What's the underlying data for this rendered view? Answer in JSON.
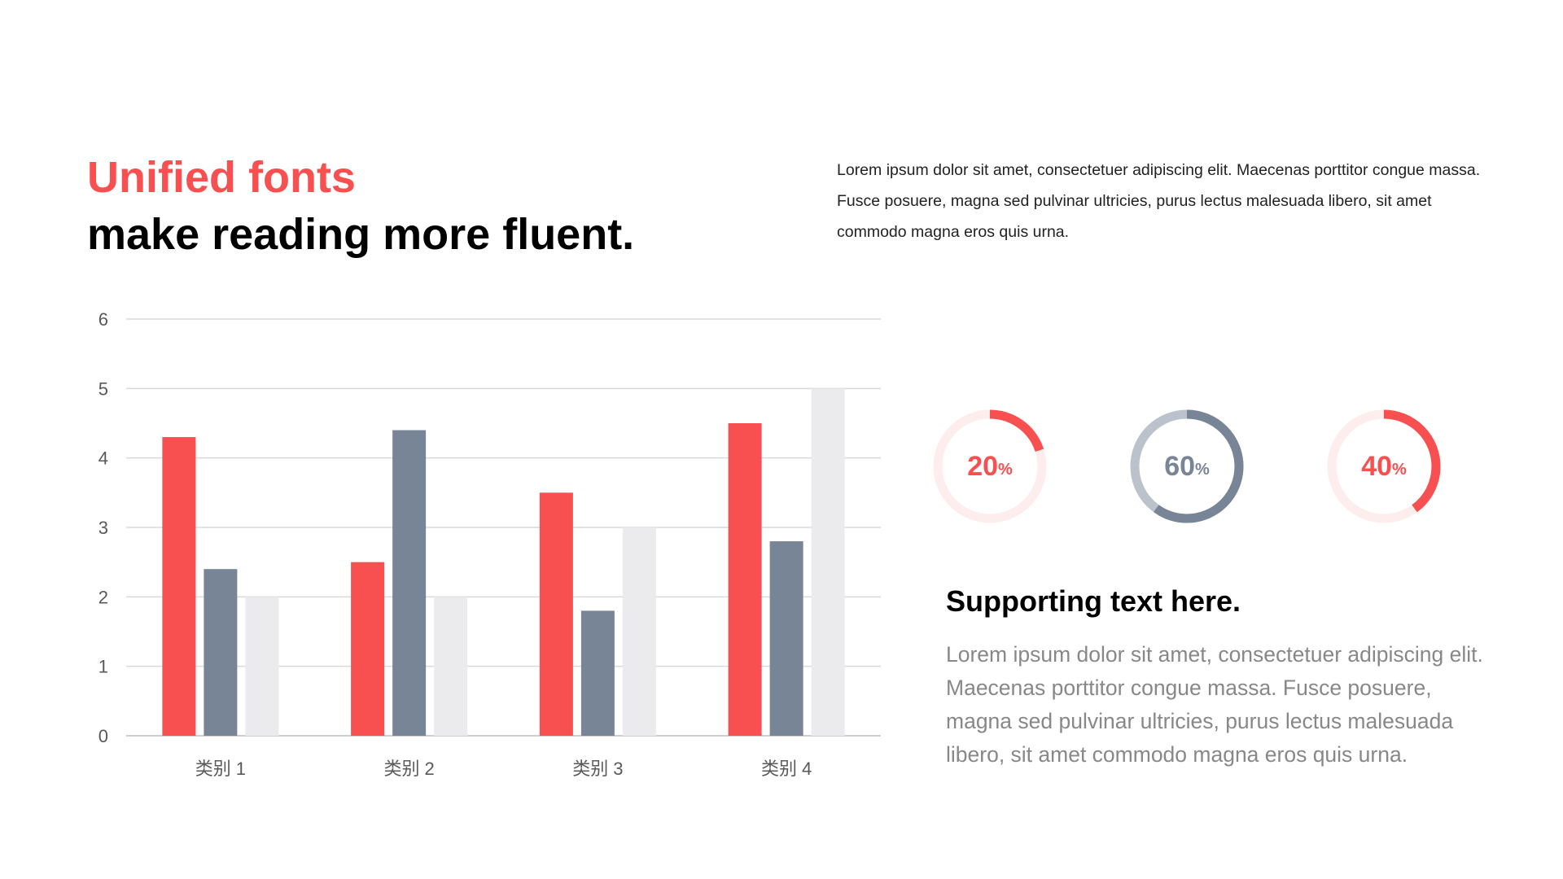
{
  "header": {
    "title_accent": "Unified fonts",
    "title_main": "make reading more fluent.",
    "intro": "Lorem ipsum dolor sit amet, consectetuer adipiscing elit. Maecenas porttitor congue massa. Fusce posuere, magna sed pulvinar ultricies, purus lectus malesuada libero, sit amet commodo magna eros quis urna."
  },
  "chart_data": {
    "type": "bar",
    "categories": [
      "类别 1",
      "类别 2",
      "类别 3",
      "类别 4"
    ],
    "series": [
      {
        "values": [
          4.3,
          2.5,
          3.5,
          4.5
        ],
        "color": "#f84f50"
      },
      {
        "values": [
          2.4,
          4.4,
          1.8,
          2.8
        ],
        "color": "#788596"
      },
      {
        "values": [
          2,
          2,
          3,
          5
        ],
        "color": "#ebebed"
      }
    ],
    "title": "",
    "xlabel": "",
    "ylabel": "",
    "ylim": [
      0,
      6
    ],
    "yticks": [
      "0",
      "1",
      "2",
      "3",
      "4",
      "5",
      "6"
    ],
    "grid": true,
    "legend": "none"
  },
  "rings": [
    {
      "value": 20,
      "number": "20",
      "unit": "%",
      "color": "#f84f50",
      "track_color": "#fdeded"
    },
    {
      "value": 60,
      "number": "60",
      "unit": "%",
      "color": "#788596",
      "track_color": "#bcc2cb"
    },
    {
      "value": 40,
      "number": "40",
      "unit": "%",
      "color": "#f84f50",
      "track_color": "#fdeded"
    }
  ],
  "support": {
    "title": "Supporting text here.",
    "body": "Lorem ipsum dolor sit amet, consectetuer adipiscing elit. Maecenas porttitor congue massa. Fusce posuere, magna sed pulvinar ultricies, purus lectus malesuada libero, sit amet commodo magna eros quis urna."
  }
}
